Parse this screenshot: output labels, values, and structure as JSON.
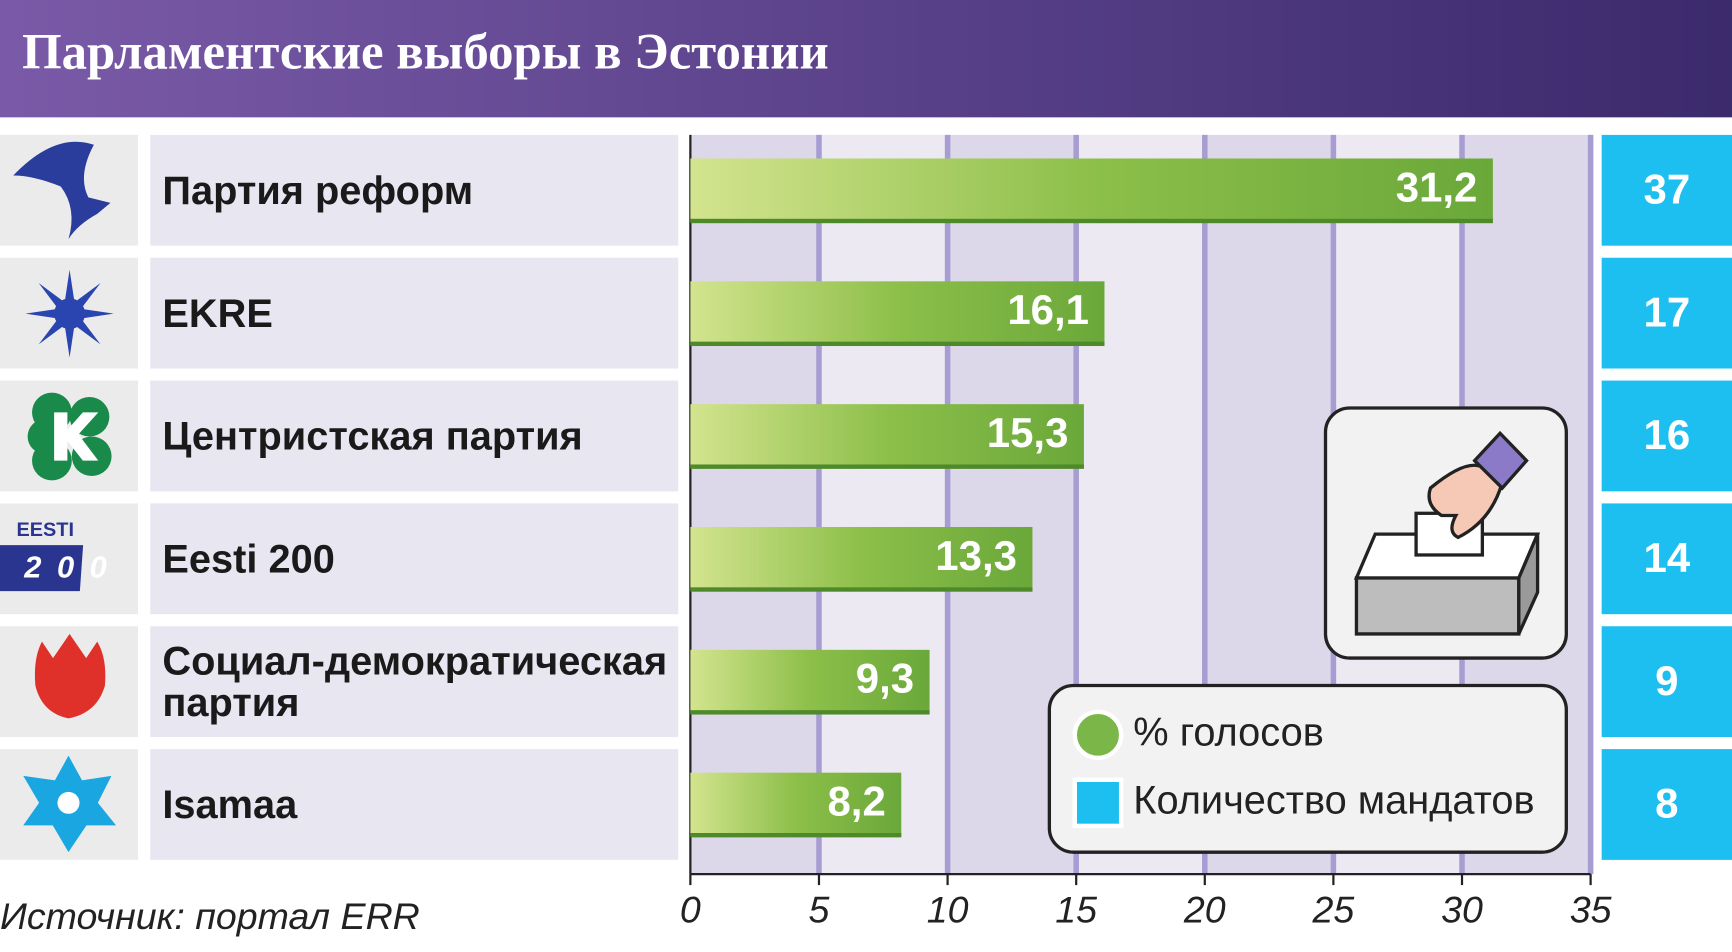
{
  "chart_data": {
    "type": "bar",
    "orientation": "horizontal",
    "title": "Парламентские выборы в Эстонии",
    "categories": [
      "Партия реформ",
      "EKRE",
      "Центристская партия",
      "Eesti 200",
      "Социал-демократическая партия",
      "Isamaa"
    ],
    "series": [
      {
        "name": "% голосов",
        "color": "#7ab648",
        "values": [
          31.2,
          16.1,
          15.3,
          13.3,
          9.3,
          8.2
        ],
        "value_labels": [
          "31,2",
          "16,1",
          "15,3",
          "13,3",
          "9,3",
          "8,2"
        ]
      },
      {
        "name": "Количество мандатов",
        "color": "#1cbfef",
        "values": [
          37,
          17,
          16,
          14,
          9,
          8
        ]
      }
    ],
    "xlim": [
      0,
      35
    ],
    "xticks": [
      0,
      5,
      10,
      15,
      20,
      25,
      30,
      35
    ],
    "grid": true,
    "source": "Источник: портал ERR"
  }
}
